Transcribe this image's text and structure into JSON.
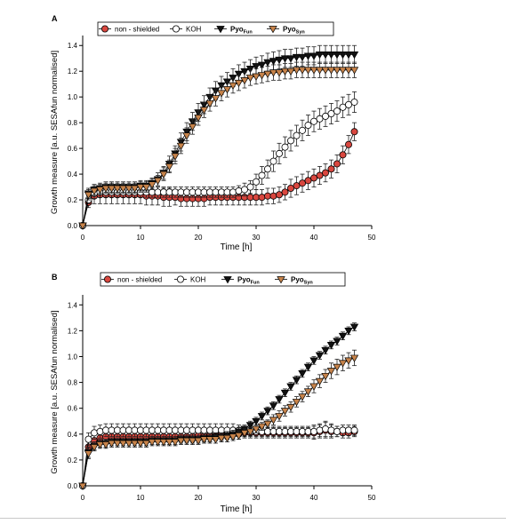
{
  "colors": {
    "non_shielded": "#d9473f",
    "koh": "#ffffff",
    "pyo_fun": "#111111",
    "pyo_syn": "#c7834a",
    "axis": "#000000"
  },
  "chart_data": [
    {
      "panel_label": "A",
      "type": "line",
      "xlabel": "Time [h]",
      "ylabel": "Growth measure [a.u. SESAfun normalised]",
      "xlim": [
        0,
        50
      ],
      "ylim": [
        0,
        1.45
      ],
      "xticks": [
        0,
        10,
        20,
        30,
        40,
        50
      ],
      "yticks": [
        0.0,
        0.2,
        0.4,
        0.6,
        0.8,
        1.0,
        1.2,
        1.4
      ],
      "x": [
        0,
        1,
        2,
        3,
        4,
        5,
        6,
        7,
        8,
        9,
        10,
        11,
        12,
        13,
        14,
        15,
        16,
        17,
        18,
        19,
        20,
        21,
        22,
        23,
        24,
        25,
        26,
        27,
        28,
        29,
        30,
        31,
        32,
        33,
        34,
        35,
        36,
        37,
        38,
        39,
        40,
        41,
        42,
        43,
        44,
        45,
        46,
        47
      ],
      "legend": {
        "position": "top",
        "entries": [
          {
            "series": "non-shielded",
            "label": "non - shielded"
          },
          {
            "series": "koh",
            "label": "KOH"
          },
          {
            "series": "pyo_fun",
            "label": "Pyo",
            "subscript": "Fun"
          },
          {
            "series": "pyo_syn",
            "label": "Pyo",
            "subscript": "Syn"
          }
        ]
      },
      "series": [
        {
          "key": "non-shielded",
          "marker": "circle-filled",
          "values": [
            0.0,
            0.18,
            0.23,
            0.24,
            0.24,
            0.24,
            0.24,
            0.24,
            0.24,
            0.24,
            0.24,
            0.23,
            0.23,
            0.23,
            0.22,
            0.22,
            0.22,
            0.21,
            0.21,
            0.21,
            0.21,
            0.21,
            0.22,
            0.22,
            0.22,
            0.22,
            0.22,
            0.22,
            0.22,
            0.22,
            0.22,
            0.22,
            0.23,
            0.23,
            0.24,
            0.26,
            0.29,
            0.31,
            0.33,
            0.35,
            0.37,
            0.39,
            0.41,
            0.44,
            0.48,
            0.55,
            0.63,
            0.73
          ],
          "err": [
            0,
            0.04,
            0.06,
            0.07,
            0.07,
            0.07,
            0.07,
            0.07,
            0.07,
            0.07,
            0.07,
            0.07,
            0.07,
            0.07,
            0.07,
            0.07,
            0.06,
            0.06,
            0.06,
            0.06,
            0.06,
            0.06,
            0.06,
            0.06,
            0.06,
            0.06,
            0.06,
            0.06,
            0.06,
            0.06,
            0.06,
            0.06,
            0.06,
            0.06,
            0.06,
            0.06,
            0.07,
            0.07,
            0.07,
            0.07,
            0.07,
            0.07,
            0.07,
            0.07,
            0.07,
            0.07,
            0.07,
            0.07
          ]
        },
        {
          "key": "koh",
          "marker": "circle-open",
          "values": [
            0.0,
            0.2,
            0.25,
            0.26,
            0.26,
            0.26,
            0.26,
            0.26,
            0.26,
            0.26,
            0.26,
            0.26,
            0.26,
            0.26,
            0.26,
            0.26,
            0.26,
            0.26,
            0.26,
            0.26,
            0.26,
            0.26,
            0.26,
            0.26,
            0.26,
            0.26,
            0.26,
            0.27,
            0.28,
            0.3,
            0.34,
            0.39,
            0.44,
            0.5,
            0.56,
            0.61,
            0.66,
            0.7,
            0.74,
            0.78,
            0.81,
            0.83,
            0.85,
            0.87,
            0.89,
            0.92,
            0.94,
            0.96
          ],
          "err": [
            0,
            0.03,
            0.04,
            0.04,
            0.04,
            0.04,
            0.04,
            0.04,
            0.04,
            0.04,
            0.04,
            0.04,
            0.04,
            0.04,
            0.04,
            0.04,
            0.04,
            0.04,
            0.04,
            0.04,
            0.04,
            0.04,
            0.04,
            0.04,
            0.04,
            0.04,
            0.04,
            0.04,
            0.05,
            0.05,
            0.06,
            0.07,
            0.07,
            0.08,
            0.08,
            0.08,
            0.08,
            0.08,
            0.08,
            0.08,
            0.08,
            0.08,
            0.08,
            0.08,
            0.08,
            0.08,
            0.08,
            0.08
          ]
        },
        {
          "key": "pyo_fun",
          "marker": "triangle-down-filled",
          "values": [
            0.0,
            0.25,
            0.28,
            0.29,
            0.3,
            0.3,
            0.3,
            0.3,
            0.3,
            0.3,
            0.31,
            0.31,
            0.33,
            0.36,
            0.41,
            0.48,
            0.56,
            0.65,
            0.73,
            0.81,
            0.88,
            0.94,
            1.0,
            1.05,
            1.09,
            1.12,
            1.15,
            1.18,
            1.2,
            1.22,
            1.24,
            1.25,
            1.27,
            1.28,
            1.29,
            1.3,
            1.3,
            1.31,
            1.31,
            1.32,
            1.32,
            1.33,
            1.33,
            1.33,
            1.33,
            1.33,
            1.33,
            1.33
          ],
          "err": [
            0,
            0.04,
            0.04,
            0.04,
            0.04,
            0.04,
            0.04,
            0.04,
            0.04,
            0.04,
            0.04,
            0.04,
            0.04,
            0.05,
            0.05,
            0.06,
            0.06,
            0.07,
            0.07,
            0.07,
            0.07,
            0.07,
            0.07,
            0.07,
            0.07,
            0.07,
            0.07,
            0.07,
            0.07,
            0.07,
            0.07,
            0.07,
            0.07,
            0.07,
            0.07,
            0.07,
            0.07,
            0.07,
            0.07,
            0.07,
            0.07,
            0.07,
            0.07,
            0.07,
            0.07,
            0.07,
            0.07,
            0.07
          ]
        },
        {
          "key": "pyo_syn",
          "marker": "triangle-down-filled",
          "values": [
            0.0,
            0.24,
            0.27,
            0.28,
            0.29,
            0.29,
            0.29,
            0.29,
            0.29,
            0.29,
            0.3,
            0.3,
            0.32,
            0.35,
            0.4,
            0.46,
            0.54,
            0.62,
            0.7,
            0.77,
            0.84,
            0.9,
            0.95,
            0.99,
            1.03,
            1.06,
            1.09,
            1.11,
            1.13,
            1.15,
            1.16,
            1.17,
            1.18,
            1.19,
            1.19,
            1.2,
            1.2,
            1.21,
            1.21,
            1.21,
            1.21,
            1.21,
            1.21,
            1.21,
            1.21,
            1.21,
            1.21,
            1.21
          ],
          "err": [
            0,
            0.04,
            0.04,
            0.04,
            0.04,
            0.04,
            0.04,
            0.04,
            0.04,
            0.04,
            0.04,
            0.04,
            0.04,
            0.04,
            0.05,
            0.05,
            0.06,
            0.06,
            0.06,
            0.06,
            0.06,
            0.06,
            0.06,
            0.06,
            0.06,
            0.06,
            0.06,
            0.06,
            0.06,
            0.06,
            0.06,
            0.06,
            0.06,
            0.06,
            0.06,
            0.06,
            0.06,
            0.06,
            0.06,
            0.06,
            0.06,
            0.06,
            0.06,
            0.06,
            0.06,
            0.06,
            0.06,
            0.06
          ]
        }
      ]
    },
    {
      "panel_label": "B",
      "type": "line",
      "xlabel": "Time [h]",
      "ylabel": "Growth measure [a.u. SESAfun normalised]",
      "xlim": [
        0,
        50
      ],
      "ylim": [
        0,
        1.45
      ],
      "xticks": [
        0,
        10,
        20,
        30,
        40,
        50
      ],
      "yticks": [
        0.0,
        0.2,
        0.4,
        0.6,
        0.8,
        1.0,
        1.2,
        1.4
      ],
      "x": [
        0,
        1,
        2,
        3,
        4,
        5,
        6,
        7,
        8,
        9,
        10,
        11,
        12,
        13,
        14,
        15,
        16,
        17,
        18,
        19,
        20,
        21,
        22,
        23,
        24,
        25,
        26,
        27,
        28,
        29,
        30,
        31,
        32,
        33,
        34,
        35,
        36,
        37,
        38,
        39,
        40,
        41,
        42,
        43,
        44,
        45,
        46,
        47
      ],
      "legend": {
        "position": "top",
        "entries": [
          {
            "series": "non-shielded",
            "label": "non - shielded"
          },
          {
            "series": "koh",
            "label": "KOH"
          },
          {
            "series": "pyo_fun",
            "label": "Pyo",
            "subscript": "Fun"
          },
          {
            "series": "pyo_syn",
            "label": "Pyo",
            "subscript": "Syn"
          }
        ]
      },
      "series": [
        {
          "key": "non-shielded",
          "marker": "circle-filled",
          "values": [
            0.0,
            0.3,
            0.35,
            0.37,
            0.38,
            0.38,
            0.38,
            0.38,
            0.38,
            0.38,
            0.38,
            0.38,
            0.38,
            0.38,
            0.38,
            0.38,
            0.38,
            0.38,
            0.38,
            0.38,
            0.39,
            0.39,
            0.39,
            0.39,
            0.4,
            0.4,
            0.4,
            0.4,
            0.41,
            0.41,
            0.41,
            0.41,
            0.41,
            0.41,
            0.41,
            0.41,
            0.41,
            0.41,
            0.41,
            0.41,
            0.41,
            0.42,
            0.43,
            0.42,
            0.42,
            0.41,
            0.41,
            0.42
          ],
          "err": [
            0,
            0.04,
            0.04,
            0.04,
            0.04,
            0.04,
            0.04,
            0.04,
            0.04,
            0.04,
            0.04,
            0.04,
            0.04,
            0.04,
            0.04,
            0.04,
            0.04,
            0.04,
            0.04,
            0.04,
            0.04,
            0.04,
            0.04,
            0.04,
            0.04,
            0.04,
            0.04,
            0.04,
            0.04,
            0.04,
            0.04,
            0.04,
            0.04,
            0.04,
            0.04,
            0.04,
            0.04,
            0.04,
            0.04,
            0.04,
            0.05,
            0.05,
            0.06,
            0.05,
            0.04,
            0.04,
            0.04,
            0.04
          ]
        },
        {
          "key": "koh",
          "marker": "circle-open",
          "values": [
            0.0,
            0.36,
            0.41,
            0.42,
            0.43,
            0.43,
            0.43,
            0.43,
            0.43,
            0.43,
            0.43,
            0.43,
            0.43,
            0.43,
            0.43,
            0.43,
            0.43,
            0.43,
            0.43,
            0.43,
            0.43,
            0.43,
            0.43,
            0.43,
            0.43,
            0.43,
            0.43,
            0.43,
            0.42,
            0.42,
            0.42,
            0.42,
            0.42,
            0.42,
            0.42,
            0.42,
            0.42,
            0.42,
            0.42,
            0.42,
            0.42,
            0.43,
            0.44,
            0.43,
            0.42,
            0.43,
            0.43,
            0.43
          ],
          "err": [
            0,
            0.05,
            0.05,
            0.05,
            0.05,
            0.05,
            0.05,
            0.05,
            0.05,
            0.05,
            0.05,
            0.05,
            0.05,
            0.05,
            0.05,
            0.05,
            0.05,
            0.05,
            0.05,
            0.05,
            0.05,
            0.05,
            0.05,
            0.05,
            0.05,
            0.05,
            0.05,
            0.04,
            0.04,
            0.04,
            0.04,
            0.04,
            0.04,
            0.04,
            0.04,
            0.04,
            0.04,
            0.04,
            0.04,
            0.04,
            0.05,
            0.05,
            0.06,
            0.05,
            0.04,
            0.04,
            0.04,
            0.04
          ]
        },
        {
          "key": "pyo_fun",
          "marker": "triangle-down-filled",
          "values": [
            0.0,
            0.26,
            0.31,
            0.33,
            0.33,
            0.34,
            0.34,
            0.34,
            0.34,
            0.34,
            0.34,
            0.34,
            0.35,
            0.35,
            0.35,
            0.35,
            0.35,
            0.36,
            0.36,
            0.36,
            0.36,
            0.37,
            0.37,
            0.38,
            0.38,
            0.39,
            0.4,
            0.42,
            0.44,
            0.47,
            0.5,
            0.54,
            0.58,
            0.62,
            0.67,
            0.72,
            0.77,
            0.82,
            0.87,
            0.92,
            0.97,
            1.01,
            1.05,
            1.09,
            1.12,
            1.16,
            1.2,
            1.23
          ],
          "err": [
            0,
            0.04,
            0.03,
            0.03,
            0.03,
            0.03,
            0.03,
            0.03,
            0.03,
            0.03,
            0.03,
            0.03,
            0.03,
            0.03,
            0.03,
            0.03,
            0.03,
            0.03,
            0.03,
            0.03,
            0.03,
            0.03,
            0.03,
            0.03,
            0.03,
            0.03,
            0.03,
            0.03,
            0.03,
            0.03,
            0.03,
            0.03,
            0.03,
            0.03,
            0.03,
            0.03,
            0.03,
            0.03,
            0.03,
            0.03,
            0.03,
            0.03,
            0.03,
            0.03,
            0.03,
            0.03,
            0.03,
            0.03
          ]
        },
        {
          "key": "pyo_syn",
          "marker": "triangle-down-filled",
          "values": [
            0.0,
            0.25,
            0.3,
            0.32,
            0.32,
            0.33,
            0.33,
            0.33,
            0.33,
            0.33,
            0.33,
            0.33,
            0.34,
            0.34,
            0.34,
            0.34,
            0.34,
            0.35,
            0.35,
            0.35,
            0.35,
            0.36,
            0.36,
            0.36,
            0.37,
            0.37,
            0.38,
            0.39,
            0.41,
            0.42,
            0.44,
            0.46,
            0.48,
            0.51,
            0.54,
            0.58,
            0.61,
            0.65,
            0.69,
            0.73,
            0.77,
            0.81,
            0.85,
            0.89,
            0.92,
            0.95,
            0.97,
            0.99
          ],
          "err": [
            0,
            0.04,
            0.03,
            0.03,
            0.03,
            0.03,
            0.03,
            0.03,
            0.03,
            0.03,
            0.03,
            0.03,
            0.03,
            0.03,
            0.03,
            0.03,
            0.03,
            0.03,
            0.03,
            0.03,
            0.03,
            0.03,
            0.03,
            0.03,
            0.03,
            0.03,
            0.03,
            0.03,
            0.03,
            0.03,
            0.03,
            0.03,
            0.03,
            0.04,
            0.04,
            0.04,
            0.04,
            0.04,
            0.04,
            0.04,
            0.05,
            0.05,
            0.05,
            0.06,
            0.06,
            0.06,
            0.06,
            0.06
          ]
        }
      ]
    }
  ]
}
